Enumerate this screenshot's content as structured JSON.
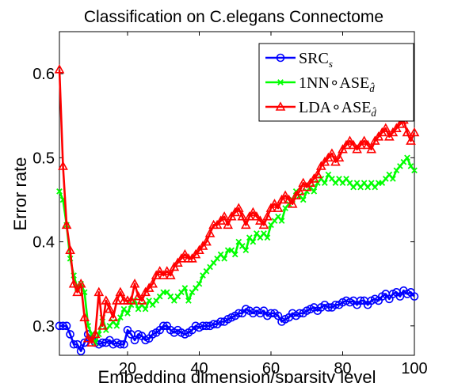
{
  "chart_data": {
    "type": "line",
    "title": "Classification on C.elegans Connectome",
    "xlabel": "Embedding dimension/sparsity level",
    "ylabel": "Error rate",
    "xlim": [
      1,
      100
    ],
    "ylim": [
      0.265,
      0.65
    ],
    "xticks": [
      20,
      40,
      60,
      80,
      100
    ],
    "yticks": [
      0.3,
      0.4,
      0.5,
      0.6
    ],
    "grid": false,
    "legend_position": "top-right",
    "x": [
      1,
      2,
      3,
      4,
      5,
      6,
      7,
      8,
      9,
      10,
      11,
      12,
      13,
      14,
      15,
      16,
      17,
      18,
      19,
      20,
      21,
      22,
      23,
      24,
      25,
      26,
      27,
      28,
      29,
      30,
      31,
      32,
      33,
      34,
      35,
      36,
      37,
      38,
      39,
      40,
      41,
      42,
      43,
      44,
      45,
      46,
      47,
      48,
      49,
      50,
      51,
      52,
      53,
      54,
      55,
      56,
      57,
      58,
      59,
      60,
      61,
      62,
      63,
      64,
      65,
      66,
      67,
      68,
      69,
      70,
      71,
      72,
      73,
      74,
      75,
      76,
      77,
      78,
      79,
      80,
      81,
      82,
      83,
      84,
      85,
      86,
      87,
      88,
      89,
      90,
      91,
      92,
      93,
      94,
      95,
      96,
      97,
      98,
      99,
      100
    ],
    "series": [
      {
        "name": "SRC_s",
        "legend_main": "SRC",
        "legend_sub": "s",
        "color": "#0000ff",
        "marker": "circle",
        "values": [
          0.3,
          0.3,
          0.3,
          0.29,
          0.278,
          0.278,
          0.27,
          0.28,
          0.29,
          0.285,
          0.28,
          0.278,
          0.28,
          0.28,
          0.283,
          0.278,
          0.28,
          0.278,
          0.278,
          0.295,
          0.29,
          0.283,
          0.29,
          0.288,
          0.283,
          0.285,
          0.29,
          0.292,
          0.295,
          0.3,
          0.3,
          0.295,
          0.292,
          0.295,
          0.292,
          0.29,
          0.292,
          0.295,
          0.3,
          0.298,
          0.3,
          0.3,
          0.3,
          0.302,
          0.302,
          0.305,
          0.305,
          0.308,
          0.31,
          0.312,
          0.315,
          0.315,
          0.32,
          0.318,
          0.315,
          0.318,
          0.315,
          0.318,
          0.312,
          0.315,
          0.315,
          0.312,
          0.305,
          0.308,
          0.31,
          0.315,
          0.312,
          0.315,
          0.315,
          0.318,
          0.32,
          0.322,
          0.318,
          0.322,
          0.325,
          0.322,
          0.322,
          0.325,
          0.325,
          0.328,
          0.33,
          0.328,
          0.33,
          0.325,
          0.33,
          0.33,
          0.325,
          0.33,
          0.332,
          0.33,
          0.335,
          0.338,
          0.332,
          0.338,
          0.34,
          0.335,
          0.342,
          0.338,
          0.34,
          0.335
        ]
      },
      {
        "name": "1NN∘ASE_d̂",
        "legend_main": "1NN∘ASE",
        "legend_sub": "d̂",
        "color": "#00ff00",
        "marker": "x",
        "values": [
          0.46,
          0.45,
          0.42,
          0.38,
          0.36,
          0.345,
          0.35,
          0.34,
          0.3,
          0.29,
          0.28,
          0.29,
          0.31,
          0.295,
          0.3,
          0.305,
          0.3,
          0.31,
          0.32,
          0.315,
          0.325,
          0.33,
          0.32,
          0.325,
          0.32,
          0.33,
          0.325,
          0.33,
          0.335,
          0.34,
          0.34,
          0.335,
          0.33,
          0.335,
          0.34,
          0.345,
          0.33,
          0.34,
          0.345,
          0.35,
          0.36,
          0.365,
          0.37,
          0.375,
          0.38,
          0.385,
          0.38,
          0.39,
          0.39,
          0.385,
          0.4,
          0.395,
          0.39,
          0.405,
          0.4,
          0.41,
          0.405,
          0.41,
          0.405,
          0.42,
          0.425,
          0.43,
          0.425,
          0.44,
          0.445,
          0.45,
          0.46,
          0.455,
          0.45,
          0.46,
          0.465,
          0.46,
          0.47,
          0.475,
          0.47,
          0.48,
          0.475,
          0.47,
          0.475,
          0.47,
          0.475,
          0.47,
          0.465,
          0.47,
          0.465,
          0.47,
          0.465,
          0.47,
          0.465,
          0.47,
          0.47,
          0.475,
          0.48,
          0.475,
          0.485,
          0.49,
          0.495,
          0.5,
          0.49,
          0.485
        ]
      },
      {
        "name": "LDA∘ASE_d̂",
        "legend_main": "LDA∘ASE",
        "legend_sub": "d̂",
        "color": "#ff0000",
        "marker": "triangle",
        "values": [
          0.605,
          0.49,
          0.42,
          0.39,
          0.35,
          0.34,
          0.35,
          0.31,
          0.285,
          0.28,
          0.29,
          0.34,
          0.3,
          0.33,
          0.32,
          0.31,
          0.33,
          0.34,
          0.33,
          0.33,
          0.33,
          0.35,
          0.335,
          0.33,
          0.34,
          0.345,
          0.35,
          0.36,
          0.365,
          0.36,
          0.365,
          0.36,
          0.37,
          0.375,
          0.38,
          0.385,
          0.38,
          0.38,
          0.385,
          0.39,
          0.395,
          0.4,
          0.41,
          0.42,
          0.42,
          0.425,
          0.43,
          0.42,
          0.43,
          0.435,
          0.44,
          0.43,
          0.42,
          0.43,
          0.435,
          0.43,
          0.425,
          0.42,
          0.43,
          0.44,
          0.445,
          0.44,
          0.45,
          0.455,
          0.45,
          0.445,
          0.455,
          0.46,
          0.47,
          0.465,
          0.47,
          0.475,
          0.48,
          0.49,
          0.495,
          0.5,
          0.505,
          0.495,
          0.5,
          0.51,
          0.515,
          0.52,
          0.515,
          0.51,
          0.515,
          0.52,
          0.515,
          0.51,
          0.52,
          0.525,
          0.53,
          0.535,
          0.525,
          0.53,
          0.535,
          0.54,
          0.545,
          0.53,
          0.52,
          0.53
        ]
      }
    ]
  }
}
